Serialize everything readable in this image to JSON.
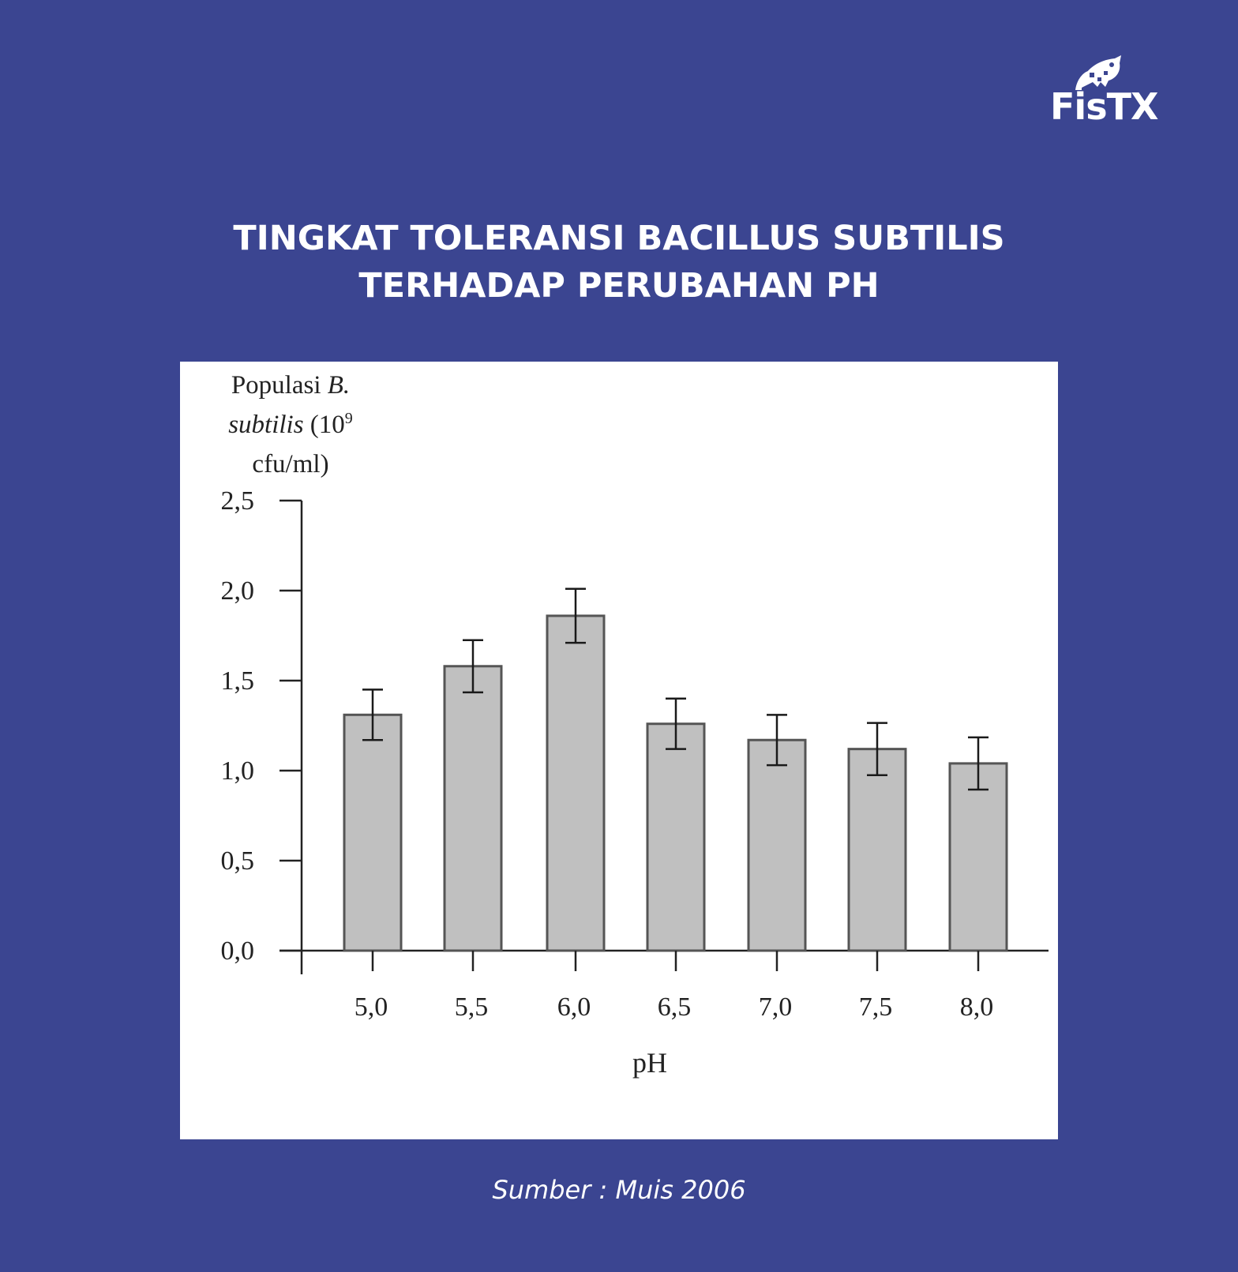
{
  "brand": {
    "logo_text": "FisTX",
    "logo_icon": "fish-icon"
  },
  "header": {
    "title_line1": "TINGKAT TOLERANSI BACILLUS SUBTILIS",
    "title_line2": "TERHADAP PERUBAHAN PH"
  },
  "footer": {
    "source": "Sumber : Muis 2006"
  },
  "colors": {
    "background": "#3b4591",
    "panel": "#ffffff",
    "bar_fill": "#c0c0c0",
    "bar_stroke": "#555555",
    "axis": "#222222"
  },
  "chart_data": {
    "type": "bar",
    "title": "Tingkat Toleransi Bacillus subtilis Terhadap Perubahan pH",
    "xlabel": "pH",
    "ylabel": "Populasi B. subtilis (10^9 cfu/ml)",
    "ylabel_lines": [
      "Populasi B.",
      "subtilis (10",
      "cfu/ml)"
    ],
    "ylabel_superscript": "9",
    "categories": [
      "5,0",
      "5,5",
      "6,0",
      "6,5",
      "7,0",
      "7,5",
      "8,0"
    ],
    "values": [
      1.31,
      1.58,
      1.86,
      1.26,
      1.17,
      1.12,
      1.04
    ],
    "error": [
      0.14,
      0.145,
      0.15,
      0.14,
      0.14,
      0.145,
      0.145
    ],
    "yticks": [
      "0,0",
      "0,5",
      "1,0",
      "1,5",
      "2,0",
      "2,5"
    ],
    "ytick_values": [
      0,
      0.5,
      1.0,
      1.5,
      2.0,
      2.5
    ],
    "ylim": [
      0,
      2.5
    ],
    "grid": false,
    "legend": null
  }
}
